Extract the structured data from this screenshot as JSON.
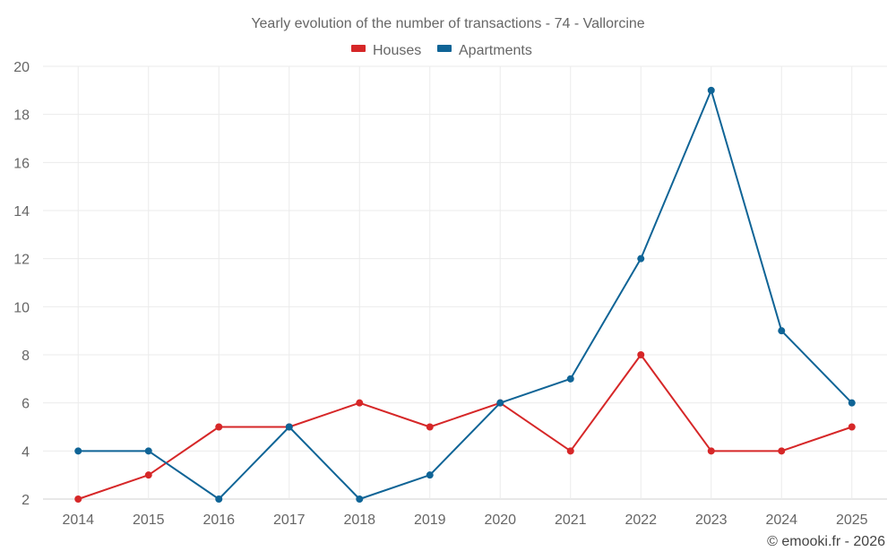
{
  "chart_data": {
    "type": "line",
    "title": "Yearly evolution of the number of transactions - 74 - Vallorcine",
    "xlabel": "",
    "ylabel": "",
    "categories": [
      "2014",
      "2015",
      "2016",
      "2017",
      "2018",
      "2019",
      "2020",
      "2021",
      "2022",
      "2023",
      "2024",
      "2025"
    ],
    "ylim": [
      2,
      20
    ],
    "yticks": [
      2,
      4,
      6,
      8,
      10,
      12,
      14,
      16,
      18,
      20
    ],
    "grid": true,
    "legend_position": "top-center",
    "series": [
      {
        "name": "Houses",
        "color": "#d62728",
        "values": [
          2,
          3,
          5,
          5,
          6,
          5,
          6,
          4,
          8,
          4,
          4,
          5
        ]
      },
      {
        "name": "Apartments",
        "color": "#0f6496",
        "values": [
          4,
          4,
          2,
          5,
          2,
          3,
          6,
          7,
          12,
          19,
          9,
          6
        ]
      }
    ],
    "credit": "© emooki.fr - 2026"
  }
}
